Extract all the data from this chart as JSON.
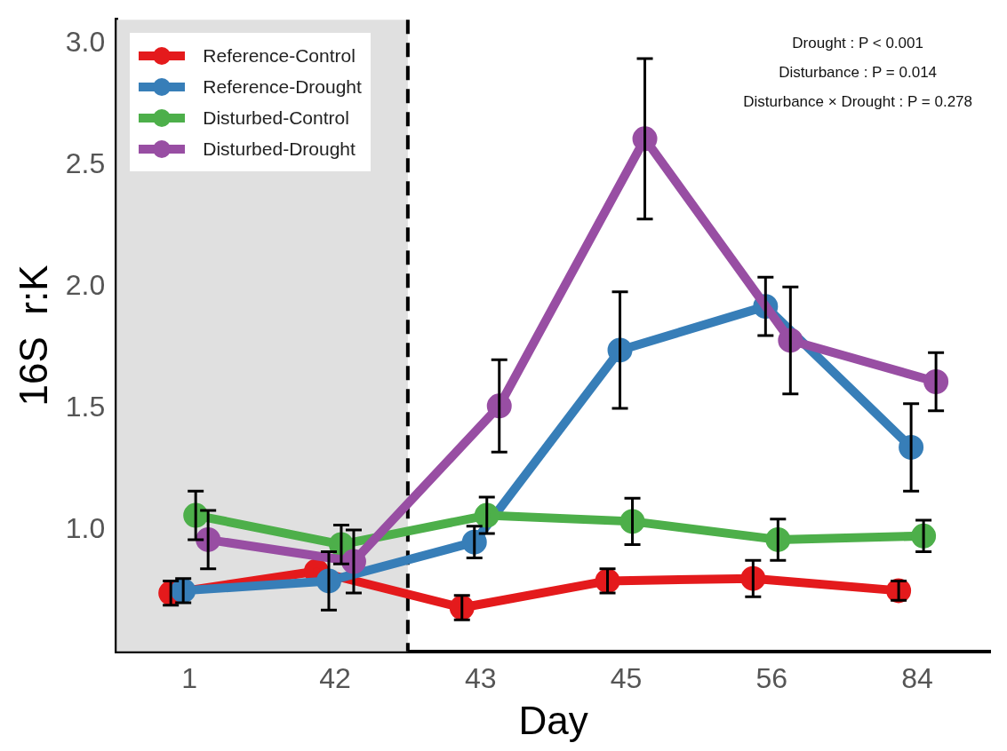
{
  "chart_data": {
    "type": "line",
    "xlabel": "Day",
    "ylabel": "16S  r:K",
    "categories": [
      "1",
      "42",
      "43",
      "45",
      "56",
      "84"
    ],
    "series": [
      {
        "name": "Reference-Control",
        "color": "#e41a1c",
        "values": [
          0.74,
          0.83,
          0.68,
          0.79,
          0.8,
          0.75
        ],
        "errors": [
          0.05,
          null,
          0.05,
          0.05,
          0.075,
          0.04
        ]
      },
      {
        "name": "Reference-Drought",
        "color": "#377eb8",
        "values": [
          0.75,
          0.79,
          0.95,
          1.74,
          1.92,
          1.34
        ],
        "errors": [
          0.05,
          0.12,
          0.065,
          0.24,
          0.12,
          0.18
        ]
      },
      {
        "name": "Disturbed-Control",
        "color": "#4daf4a",
        "values": [
          1.06,
          0.94,
          1.06,
          1.035,
          0.96,
          0.975
        ],
        "errors": [
          0.1,
          0.08,
          0.075,
          0.095,
          0.085,
          0.065
        ]
      },
      {
        "name": "Disturbed-Drought",
        "color": "#984ea3",
        "values": [
          0.96,
          0.87,
          1.51,
          2.61,
          1.78,
          1.61
        ],
        "errors": [
          0.12,
          0.13,
          0.19,
          0.33,
          0.22,
          0.12
        ]
      }
    ],
    "ylim": [
      0.5,
      3.1
    ],
    "yticks": [
      {
        "value": 1,
        "label": "1.0"
      },
      1.5,
      {
        "value": 2,
        "label": "2.0"
      },
      2.5,
      {
        "value": 3,
        "label": "3.0"
      }
    ],
    "bands": [
      {
        "axis": "x",
        "from": "1",
        "to": "42",
        "color": "#e0e0e0"
      }
    ],
    "annotations": [
      "Drought : P < 0.001",
      "Disturbance : P = 0.014",
      "Disturbance × Drought : P = 0.278"
    ],
    "grid": false,
    "legend": "top left",
    "marker": "circle",
    "line_style": "solid"
  }
}
